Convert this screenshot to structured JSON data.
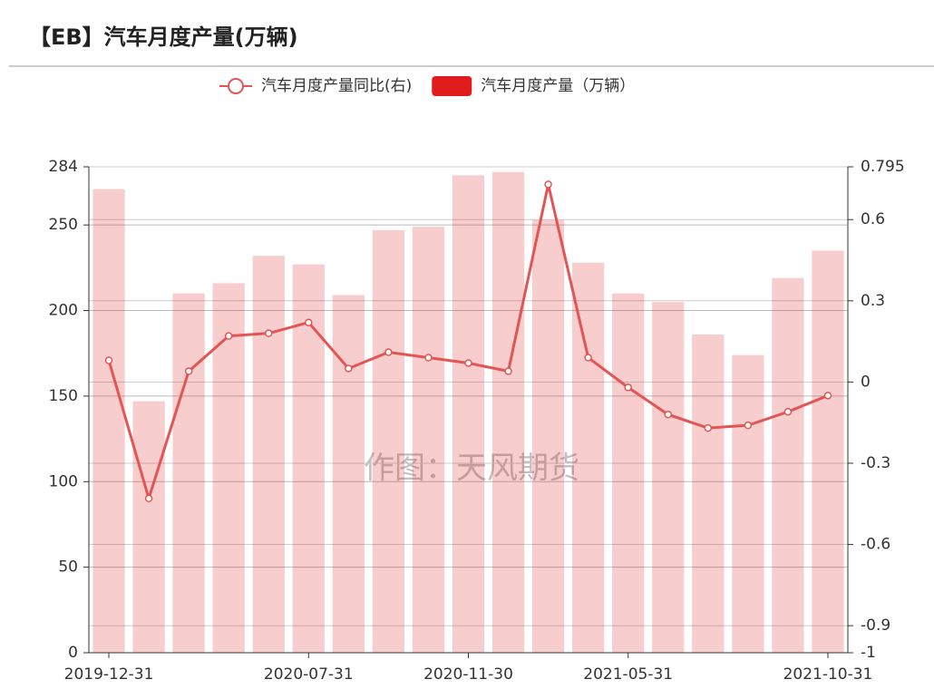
{
  "chart_data": {
    "type": "bar",
    "title": "【EB】汽车月度产量(万辆)",
    "watermark": "作图：天风期货",
    "categories": [
      "2019-12-31",
      null,
      null,
      null,
      null,
      "2020-07-31",
      null,
      null,
      null,
      "2020-11-30",
      null,
      null,
      null,
      "2021-05-31",
      null,
      null,
      null,
      null,
      "2021-10-31"
    ],
    "series": [
      {
        "name": "汽车月度产量同比(右)",
        "type": "line",
        "axis": "y2",
        "color": "#e35555",
        "values": [
          0.08,
          -0.43,
          0.04,
          0.17,
          0.18,
          0.22,
          0.05,
          0.11,
          0.09,
          0.07,
          0.04,
          0.73,
          0.09,
          -0.02,
          -0.12,
          -0.17,
          -0.16,
          -0.11,
          -0.05
        ]
      },
      {
        "name": "汽车月度产量（万辆）",
        "type": "bar",
        "color": "#e01c1c",
        "values": [
          271,
          147,
          210,
          216,
          232,
          227,
          209,
          247,
          249,
          279,
          281,
          253,
          228,
          210,
          205,
          186,
          174,
          219,
          235
        ]
      }
    ],
    "ylim": [
      0,
      284
    ],
    "yticks": [
      0,
      50,
      100,
      150,
      200,
      250,
      284
    ],
    "y2lim": [
      -1,
      0.795
    ],
    "y2ticks": [
      -1,
      -0.9,
      -0.6,
      -0.3,
      0,
      0.3,
      0.6,
      0.795
    ],
    "grid": true,
    "legend": "top"
  }
}
